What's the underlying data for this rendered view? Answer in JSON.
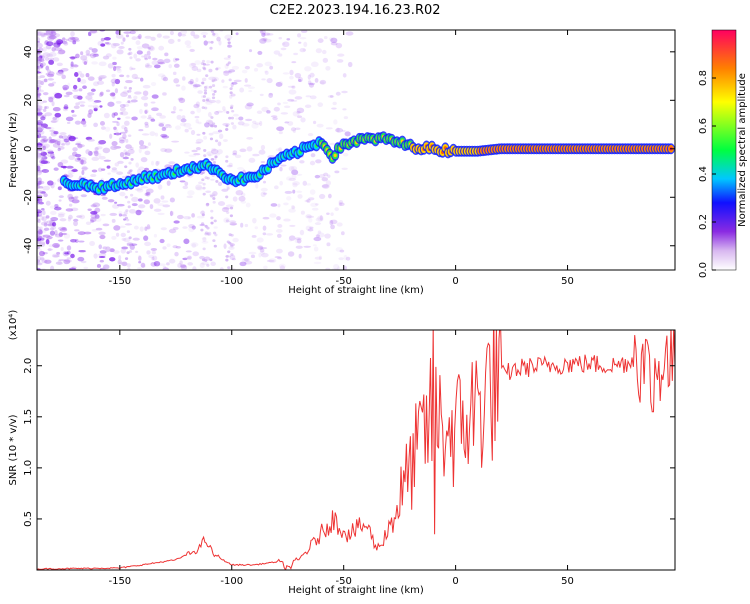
{
  "title": "C2E2.2023.194.16.23.R02",
  "chart_data": [
    {
      "type": "heatmap",
      "title": "C2E2.2023.194.16.23.R02",
      "xlabel": "Height of straight line (km)",
      "ylabel": "Frequency (Hz)",
      "xlim": [
        -187,
        98
      ],
      "ylim": [
        -50,
        49
      ],
      "xticks": [
        -150,
        -100,
        -50,
        0,
        50
      ],
      "yticks": [
        -40,
        -20,
        0,
        20,
        40
      ],
      "ridge": {
        "x": [
          -175,
          -165,
          -160,
          -150,
          -140,
          -130,
          -120,
          -110,
          -100,
          -90,
          -80,
          -70,
          -60,
          -55,
          -50,
          -40,
          -30,
          -20,
          -10,
          0,
          10,
          20,
          50,
          97
        ],
        "y": [
          -14,
          -15,
          -16,
          -15,
          -12,
          -11,
          -8,
          -7,
          -13,
          -12,
          -5,
          -1,
          3,
          -3,
          2,
          4,
          4,
          1,
          0,
          -1,
          -1,
          0,
          0,
          0
        ]
      },
      "colorbar": {
        "label": "Normalized spectral amplitude",
        "ticks": [
          0.0,
          0.2,
          0.4,
          0.6,
          0.8
        ],
        "range": [
          0,
          1
        ]
      }
    },
    {
      "type": "line",
      "xlabel": "Height of straight line (km)",
      "ylabel": "SNR (10 * v/v)",
      "scale_label": "(x10⁴)",
      "xlim": [
        -187,
        98
      ],
      "ylim": [
        0,
        2.35
      ],
      "xticks": [
        -150,
        -100,
        -50,
        0,
        50
      ],
      "yticks": [
        0.5,
        1.0,
        1.5,
        2.0
      ],
      "color": "#ee3333",
      "series": [
        {
          "name": "SNR",
          "x": [
            -187,
            -150,
            -140,
            -125,
            -115,
            -112,
            -108,
            -100,
            -90,
            -80,
            -75,
            -70,
            -62,
            -55,
            -48,
            -40,
            -35,
            -30,
            -25,
            -20,
            -15,
            -10,
            -5,
            0,
            5,
            10,
            15,
            20,
            25,
            30,
            40,
            50,
            60,
            70,
            80,
            85,
            88,
            92,
            98
          ],
          "y": [
            0.01,
            0.02,
            0.05,
            0.1,
            0.2,
            0.3,
            0.15,
            0.05,
            0.05,
            0.08,
            0.02,
            0.1,
            0.3,
            0.5,
            0.35,
            0.45,
            0.2,
            0.4,
            0.7,
            1.0,
            1.3,
            1.5,
            1.4,
            1.35,
            1.5,
            1.6,
            1.8,
            1.9,
            1.95,
            1.98,
            2.0,
            2.02,
            2.02,
            2.0,
            2.05,
            2.0,
            1.9,
            2.05,
            2.0
          ]
        }
      ]
    }
  ]
}
